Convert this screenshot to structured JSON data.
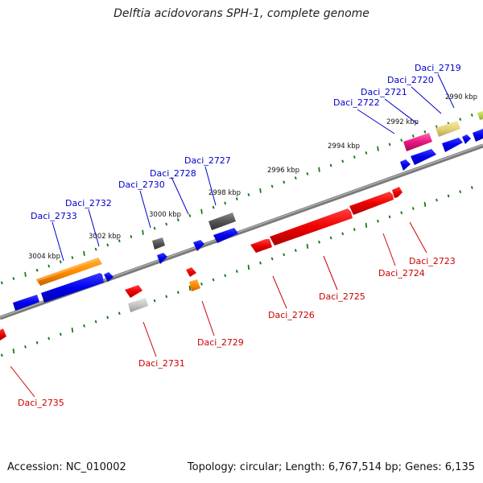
{
  "title": "Delftia acidovorans SPH-1, complete genome",
  "footer": {
    "accession": "Accession: NC_010002",
    "summary": "Topology: circular; Length: 6,767,514 bp; Genes: 6,135"
  },
  "colors": {
    "label_blue": "#0000cc",
    "label_red": "#cc0000",
    "backbone": "#808080",
    "tick_green": "#1a7a1a"
  },
  "kbp_labels": [
    "2990 kbp",
    "2992 kbp",
    "2994 kbp",
    "2996 kbp",
    "2998 kbp",
    "3000 kbp",
    "3002 kbp",
    "3004 kbp"
  ],
  "top_genes": [
    "Daci_2719",
    "Daci_2720",
    "Daci_2721",
    "Daci_2722",
    "Daci_2727",
    "Daci_2728",
    "Daci_2730",
    "Daci_2732",
    "Daci_2733"
  ],
  "bottom_genes": [
    "Daci_2723",
    "Daci_2724",
    "Daci_2725",
    "Daci_2726",
    "Daci_2729",
    "Daci_2731",
    "Daci_2735"
  ]
}
